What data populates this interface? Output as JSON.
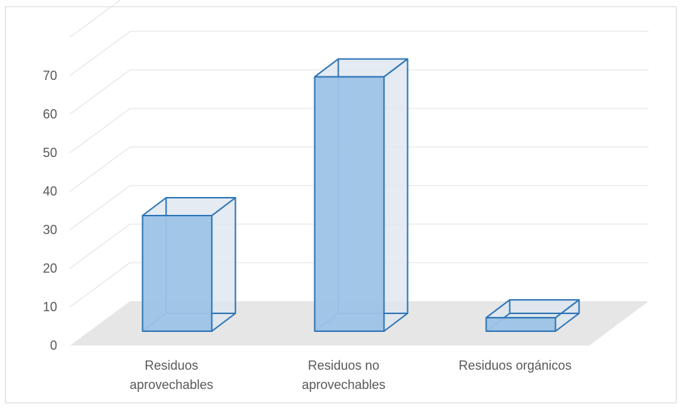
{
  "chart_data": {
    "type": "bar",
    "style": "3d-column",
    "categories": [
      "Residuos aprovechables",
      "Residuos no aprovechables",
      "Residuos orgánicos"
    ],
    "category_lines": [
      [
        "Residuos",
        "aprovechables"
      ],
      [
        "Residuos no",
        "aprovechables"
      ],
      [
        "Residuos orgánicos"
      ]
    ],
    "values": [
      30,
      66,
      3.5
    ],
    "title": "",
    "xlabel": "",
    "ylabel": "",
    "ylim": [
      0,
      70
    ],
    "yticks": [
      "0",
      "10",
      "20",
      "30",
      "40",
      "50",
      "60",
      "70"
    ],
    "grid": true,
    "legend": "none",
    "colors": {
      "bar_fill": "#9dc3e6",
      "bar_edge": "#2e75b6",
      "floor": "#e7e6e6",
      "gridline": "#e6e6e6",
      "text": "#595959"
    }
  }
}
